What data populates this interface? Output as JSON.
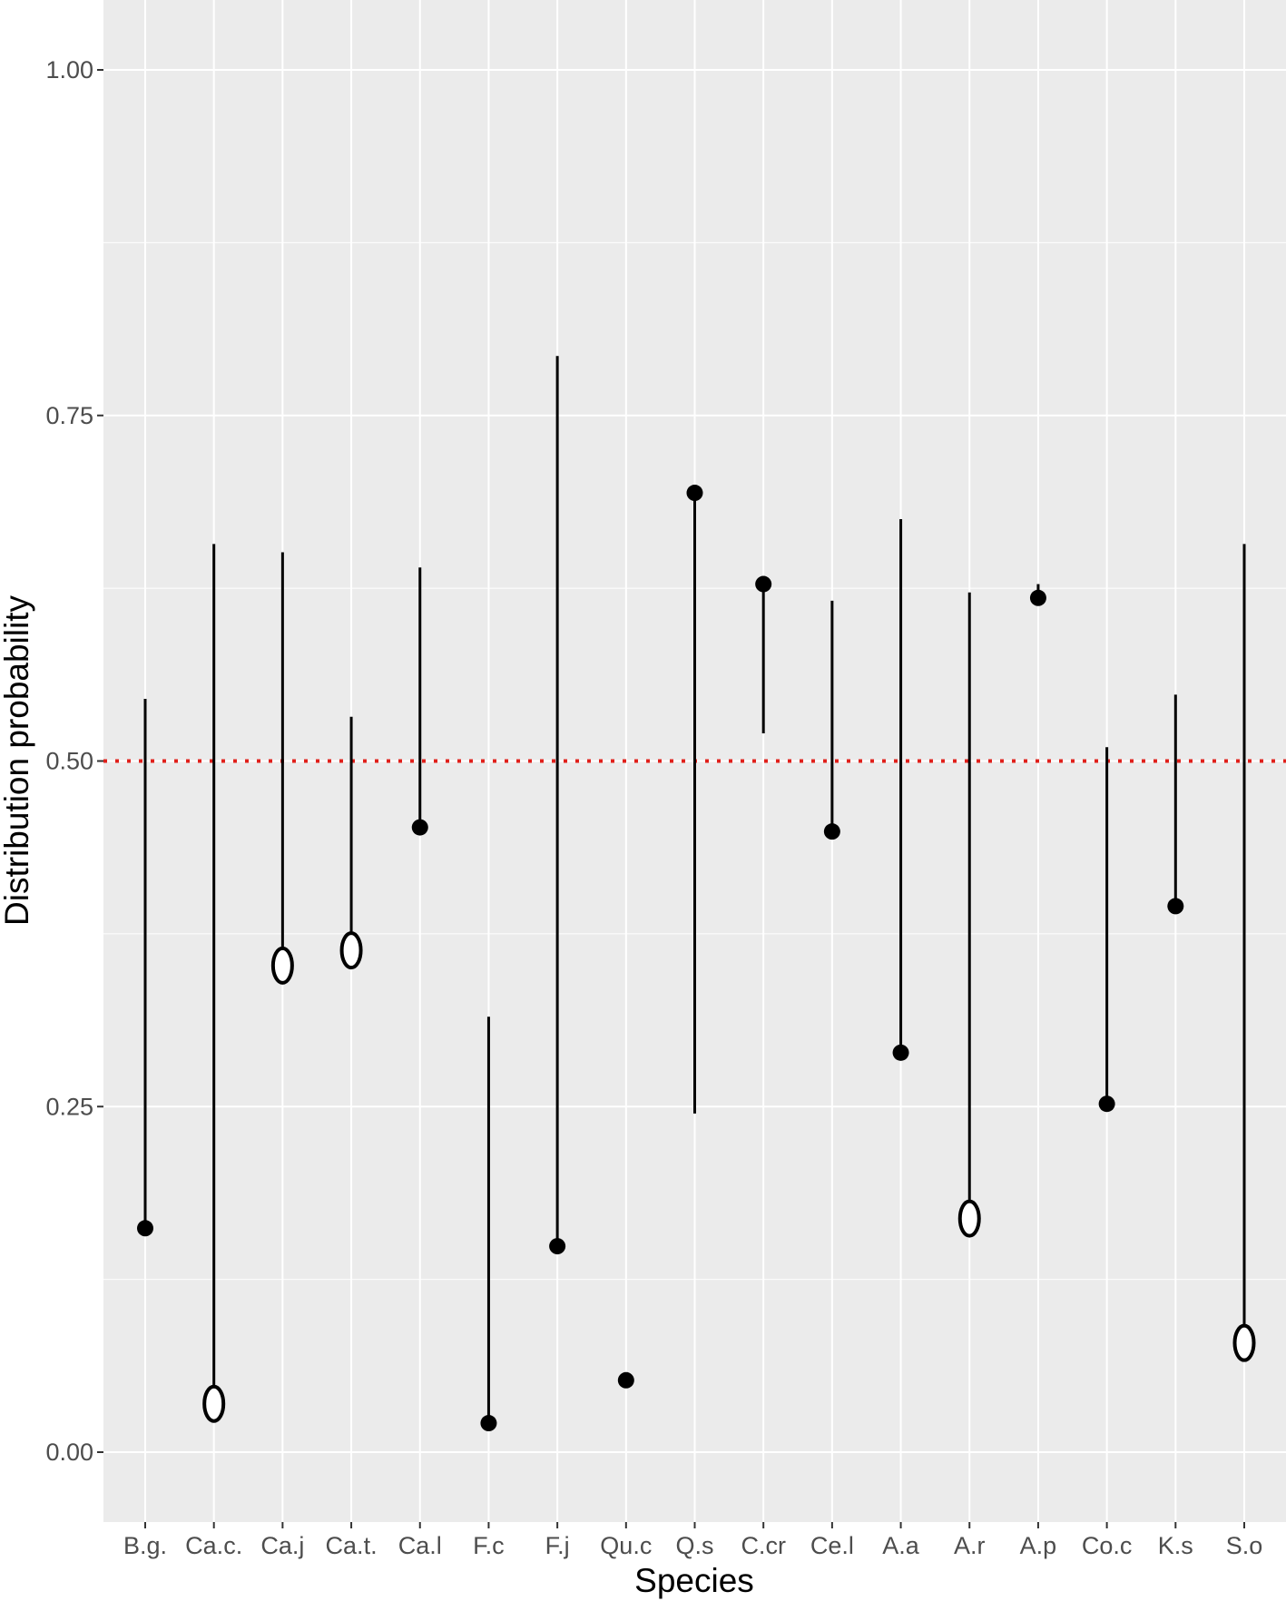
{
  "chart_data": {
    "type": "range_point",
    "xlabel": "Species",
    "ylabel": "Distribution probability",
    "ylim": [
      -0.1,
      1.1
    ],
    "y_ticks": [
      0.0,
      0.25,
      0.5,
      0.75,
      1.0
    ],
    "y_tick_labels": [
      "0.00",
      "0.25",
      "0.50",
      "0.75",
      "1.00"
    ],
    "grid": true,
    "panel_background": "#ebebeb",
    "reference_line": {
      "y": 0.5,
      "style": "dotted",
      "color": "#e0201b"
    },
    "categories": [
      "B.g.",
      "Ca.c.",
      "Ca.j",
      "Ca.t.",
      "Ca.l",
      "F.c",
      "F.j",
      "Qu.c",
      "Q.s",
      "C.cr",
      "Ce.l",
      "A.a",
      "A.r",
      "A.p",
      "Co.c",
      "K.s",
      "S.o"
    ],
    "points": [
      {
        "species": "B.g.",
        "value": 0.162,
        "marker": "filled",
        "range": [
          0.162,
          0.545
        ]
      },
      {
        "species": "Ca.c.",
        "value": 0.035,
        "marker": "open",
        "range": [
          0.035,
          0.657
        ]
      },
      {
        "species": "Ca.j",
        "value": 0.352,
        "marker": "open",
        "range": [
          0.352,
          0.651
        ]
      },
      {
        "species": "Ca.t.",
        "value": 0.363,
        "marker": "open",
        "range": [
          0.363,
          0.532
        ]
      },
      {
        "species": "Ca.l",
        "value": 0.452,
        "marker": "filled",
        "range": [
          0.452,
          0.64
        ]
      },
      {
        "species": "F.c",
        "value": 0.021,
        "marker": "filled",
        "range": [
          0.021,
          0.315
        ]
      },
      {
        "species": "F.j",
        "value": 0.149,
        "marker": "filled",
        "range": [
          0.149,
          0.793
        ]
      },
      {
        "species": "Qu.c",
        "value": 0.052,
        "marker": "filled",
        "range": null
      },
      {
        "species": "Q.s",
        "value": 0.694,
        "marker": "filled",
        "range": [
          0.245,
          0.694
        ]
      },
      {
        "species": "C.cr",
        "value": 0.628,
        "marker": "filled",
        "range": [
          0.52,
          0.628
        ]
      },
      {
        "species": "Ce.l",
        "value": 0.449,
        "marker": "filled",
        "range": [
          0.449,
          0.616
        ]
      },
      {
        "species": "A.a",
        "value": 0.289,
        "marker": "filled",
        "range": [
          0.289,
          0.675
        ]
      },
      {
        "species": "A.r",
        "value": 0.169,
        "marker": "open",
        "range": [
          0.169,
          0.622
        ]
      },
      {
        "species": "A.p",
        "value": 0.618,
        "marker": "filled",
        "range": [
          0.618,
          0.628
        ]
      },
      {
        "species": "Co.c",
        "value": 0.252,
        "marker": "filled",
        "range": [
          0.252,
          0.51
        ]
      },
      {
        "species": "K.s",
        "value": 0.395,
        "marker": "filled",
        "range": [
          0.395,
          0.548
        ]
      },
      {
        "species": "S.o",
        "value": 0.079,
        "marker": "open",
        "range": [
          0.079,
          0.657
        ]
      }
    ]
  }
}
